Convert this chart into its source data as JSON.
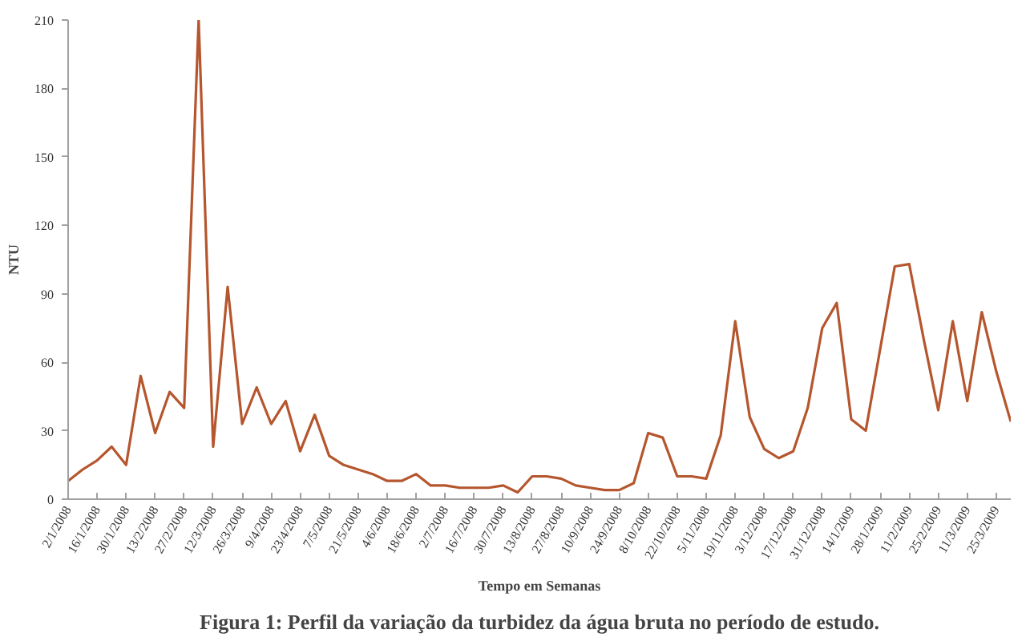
{
  "chart_data": {
    "type": "line",
    "xlabel": "Tempo em Semanas",
    "ylabel": "NTU",
    "annotations": [
      "Figura 1: Perfil da variação da turbidez da água bruta no período de estudo."
    ],
    "x": [
      "2008-01-02",
      "2008-01-09",
      "2008-01-16",
      "2008-01-23",
      "2008-01-30",
      "2008-02-06",
      "2008-02-13",
      "2008-02-20",
      "2008-02-27",
      "2008-03-05",
      "2008-03-12",
      "2008-03-19",
      "2008-03-26",
      "2008-04-02",
      "2008-04-09",
      "2008-04-16",
      "2008-04-23",
      "2008-04-30",
      "2008-05-07",
      "2008-05-14",
      "2008-05-21",
      "2008-05-28",
      "2008-06-04",
      "2008-06-11",
      "2008-06-18",
      "2008-06-25",
      "2008-07-02",
      "2008-07-09",
      "2008-07-16",
      "2008-07-23",
      "2008-07-30",
      "2008-08-06",
      "2008-08-13",
      "2008-08-20",
      "2008-08-27",
      "2008-09-03",
      "2008-09-10",
      "2008-09-17",
      "2008-09-24",
      "2008-10-01",
      "2008-10-08",
      "2008-10-15",
      "2008-10-22",
      "2008-10-29",
      "2008-11-05",
      "2008-11-12",
      "2008-11-19",
      "2008-11-26",
      "2008-12-03",
      "2008-12-10",
      "2008-12-17",
      "2008-12-24",
      "2008-12-31",
      "2009-01-07",
      "2009-01-14",
      "2009-01-21",
      "2009-01-28",
      "2009-02-04",
      "2009-02-11",
      "2009-02-18",
      "2009-02-25",
      "2009-03-04",
      "2009-03-11",
      "2009-03-18",
      "2009-03-25",
      "2009-04-01"
    ],
    "series": [
      {
        "color": "#b5562e",
        "values": [
          8,
          13,
          17,
          23,
          15,
          54,
          29,
          47,
          40,
          210,
          23,
          93,
          33,
          49,
          33,
          43,
          21,
          37,
          19,
          15,
          13,
          11,
          8,
          8,
          11,
          6,
          6,
          5,
          5,
          5,
          6,
          3,
          10,
          10,
          9,
          6,
          5,
          4,
          4,
          7,
          29,
          27,
          10,
          10,
          9,
          28,
          78,
          36,
          22,
          18,
          21,
          40,
          75,
          86,
          35,
          30,
          66,
          102,
          103,
          70,
          39,
          78,
          43,
          82,
          56,
          34
        ]
      }
    ],
    "xlim": [
      "2008-01-02",
      "2009-04-01"
    ],
    "ylim": [
      0,
      210
    ],
    "yticks": [
      0,
      30,
      60,
      90,
      120,
      150,
      180,
      210
    ],
    "xticks": [
      {
        "value": "2008-01-02",
        "label": "2/1/2008"
      },
      {
        "value": "2008-01-16",
        "label": "16/1/2008"
      },
      {
        "value": "2008-01-30",
        "label": "30/1/2008"
      },
      {
        "value": "2008-02-13",
        "label": "13/2/2008"
      },
      {
        "value": "2008-02-27",
        "label": "27/2/2008"
      },
      {
        "value": "2008-03-12",
        "label": "12/3/2008"
      },
      {
        "value": "2008-03-26",
        "label": "26/3/2008"
      },
      {
        "value": "2008-04-09",
        "label": "9/4/2008"
      },
      {
        "value": "2008-04-23",
        "label": "23/4/2008"
      },
      {
        "value": "2008-05-07",
        "label": "7/5/2008"
      },
      {
        "value": "2008-05-21",
        "label": "21/5/2008"
      },
      {
        "value": "2008-06-04",
        "label": "4/6/2008"
      },
      {
        "value": "2008-06-18",
        "label": "18/6/2008"
      },
      {
        "value": "2008-07-02",
        "label": "2/7/2008"
      },
      {
        "value": "2008-07-16",
        "label": "16/7/2008"
      },
      {
        "value": "2008-07-30",
        "label": "30/7/2008"
      },
      {
        "value": "2008-08-13",
        "label": "13/8/2008"
      },
      {
        "value": "2008-08-27",
        "label": "27/8/2008"
      },
      {
        "value": "2008-09-10",
        "label": "10/9/2008"
      },
      {
        "value": "2008-09-24",
        "label": "24/9/2008"
      },
      {
        "value": "2008-10-08",
        "label": "8/10/2008"
      },
      {
        "value": "2008-10-22",
        "label": "22/10/2008"
      },
      {
        "value": "2008-11-05",
        "label": "5/11/2008"
      },
      {
        "value": "2008-11-19",
        "label": "19/11/2008"
      },
      {
        "value": "2008-12-03",
        "label": "3/12/2008"
      },
      {
        "value": "2008-12-17",
        "label": "17/12/2008"
      },
      {
        "value": "2008-12-31",
        "label": "31/12/2008"
      },
      {
        "value": "2009-01-14",
        "label": "14/1/2009"
      },
      {
        "value": "2009-01-28",
        "label": "28/1/2009"
      },
      {
        "value": "2009-02-11",
        "label": "11/2/2009"
      },
      {
        "value": "2009-02-25",
        "label": "25/2/2009"
      },
      {
        "value": "2009-03-11",
        "label": "11/3/2009"
      },
      {
        "value": "2009-03-25",
        "label": "25/3/2009"
      }
    ],
    "grid": false,
    "marker": "none",
    "line_style": "solid"
  }
}
